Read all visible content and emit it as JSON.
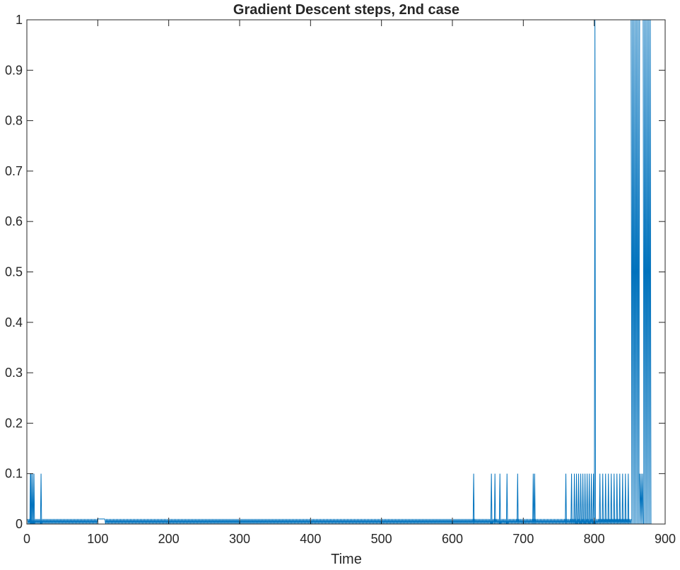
{
  "chart_data": {
    "type": "line",
    "title": "Gradient Descent steps, 2nd case",
    "xlabel": "Time",
    "ylabel": "",
    "xlim": [
      0,
      900
    ],
    "ylim": [
      0,
      1
    ],
    "xticks": [
      0,
      100,
      200,
      300,
      400,
      500,
      600,
      700,
      800,
      900
    ],
    "xtick_labels": [
      "0",
      "100",
      "200",
      "300",
      "400",
      "500",
      "600",
      "700",
      "800",
      "900"
    ],
    "yticks": [
      0,
      0.1,
      0.2,
      0.3,
      0.4,
      0.5,
      0.6,
      0.7,
      0.8,
      0.9,
      1
    ],
    "ytick_labels": [
      "0",
      "0.1",
      "0.2",
      "0.3",
      "0.4",
      "0.5",
      "0.6",
      "0.7",
      "0.8",
      "0.9",
      "1"
    ],
    "grid": false,
    "box": true,
    "series": [
      {
        "color": "#0072BD",
        "segments": [
          {
            "x_start": 1,
            "x_end": 100,
            "pattern": "alternating",
            "low": 0,
            "high": 0.01
          },
          {
            "x_start": 110,
            "x_end": 760,
            "pattern": "alternating",
            "low": 0,
            "high": 0.01
          },
          {
            "x_start": 760,
            "x_end": 852,
            "pattern": "alternating",
            "low": 0,
            "high": 0.01
          },
          {
            "x_start": 852,
            "x_end": 864,
            "pattern": "alternating",
            "low": 0,
            "high": 1
          },
          {
            "x_start": 864,
            "x_end": 869,
            "pattern": "alternating",
            "low": 0,
            "high": 0.1
          },
          {
            "x_start": 869,
            "x_end": 880,
            "pattern": "alternating",
            "low": 0,
            "high": 1
          }
        ],
        "spikes": [
          {
            "x": 5,
            "y": 0.1
          },
          {
            "x": 6,
            "y": 0.1
          },
          {
            "x": 8,
            "y": 0.1
          },
          {
            "x": 10,
            "y": 0.1
          },
          {
            "x": 20,
            "y": 0.1
          },
          {
            "x": 630,
            "y": 0.1
          },
          {
            "x": 655,
            "y": 0.1
          },
          {
            "x": 660,
            "y": 0.1
          },
          {
            "x": 667,
            "y": 0.1
          },
          {
            "x": 677,
            "y": 0.1
          },
          {
            "x": 692,
            "y": 0.1
          },
          {
            "x": 714,
            "y": 0.1
          },
          {
            "x": 716,
            "y": 0.1
          },
          {
            "x": 760,
            "y": 0.1
          },
          {
            "x": 768,
            "y": 0.1
          },
          {
            "x": 772,
            "y": 0.1
          },
          {
            "x": 775,
            "y": 0.1
          },
          {
            "x": 778,
            "y": 0.1
          },
          {
            "x": 781,
            "y": 0.1
          },
          {
            "x": 784,
            "y": 0.1
          },
          {
            "x": 787,
            "y": 0.1
          },
          {
            "x": 790,
            "y": 0.1
          },
          {
            "x": 793,
            "y": 0.1
          },
          {
            "x": 796,
            "y": 0.1
          },
          {
            "x": 799,
            "y": 0.1
          },
          {
            "x": 801,
            "y": 1
          },
          {
            "x": 808,
            "y": 0.1
          },
          {
            "x": 812,
            "y": 0.1
          },
          {
            "x": 816,
            "y": 0.1
          },
          {
            "x": 820,
            "y": 0.1
          },
          {
            "x": 824,
            "y": 0.1
          },
          {
            "x": 828,
            "y": 0.1
          },
          {
            "x": 832,
            "y": 0.1
          },
          {
            "x": 836,
            "y": 0.1
          },
          {
            "x": 840,
            "y": 0.1
          },
          {
            "x": 844,
            "y": 0.1
          },
          {
            "x": 848,
            "y": 0.1
          }
        ],
        "flat_segments": [
          {
            "x_start": 100,
            "x_end": 110,
            "y": 0.01
          }
        ]
      }
    ]
  }
}
